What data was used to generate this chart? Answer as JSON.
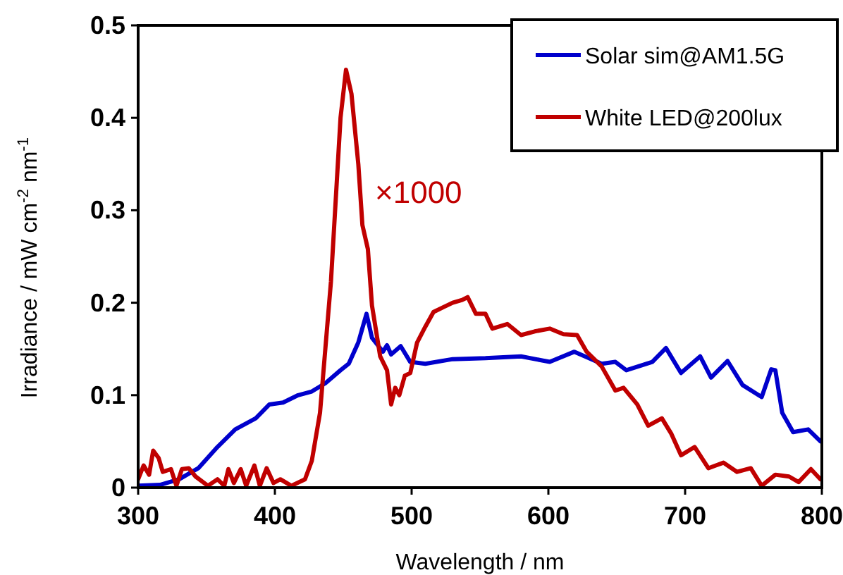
{
  "chart_data": {
    "type": "line",
    "xlabel": "Wavelength / nm",
    "ylabel": "Irradiance / mW cm$^{-2}$ nm$^{-1}$",
    "xlim": [
      300,
      800
    ],
    "xticks": [
      300,
      400,
      500,
      600,
      700,
      800
    ],
    "ylim": [
      0,
      0.5
    ],
    "yticks": [
      0,
      0.1,
      0.2,
      0.3,
      0.4,
      0.5
    ],
    "grid": false,
    "legend": "top right",
    "marker": "none",
    "line_style": "solid",
    "annotations": [
      "×1000"
    ],
    "series": [
      {
        "name": "Solar sim@AM1.5G",
        "color": "#0000cc",
        "x": [
          300,
          316,
          330,
          344,
          358,
          371,
          386,
          396,
          406,
          417,
          427,
          437,
          448,
          454,
          461,
          467,
          471,
          479,
          482,
          485,
          492,
          499,
          510,
          530,
          554,
          580,
          601,
          619,
          639,
          649,
          657,
          676,
          686,
          697,
          711,
          719,
          731,
          742,
          756,
          763,
          766,
          771,
          779,
          790,
          799
        ],
        "values": [
          0.002,
          0.003,
          0.009,
          0.021,
          0.044,
          0.063,
          0.075,
          0.09,
          0.092,
          0.1,
          0.104,
          0.113,
          0.127,
          0.134,
          0.157,
          0.188,
          0.162,
          0.147,
          0.154,
          0.144,
          0.153,
          0.136,
          0.134,
          0.139,
          0.14,
          0.142,
          0.136,
          0.147,
          0.134,
          0.136,
          0.127,
          0.136,
          0.151,
          0.124,
          0.142,
          0.119,
          0.137,
          0.111,
          0.098,
          0.128,
          0.127,
          0.081,
          0.06,
          0.063,
          0.05
        ]
      },
      {
        "name": "White LED@200lux",
        "color": "#c00000",
        "x": [
          300,
          304,
          308,
          311,
          315,
          318,
          324,
          328,
          332,
          337,
          342,
          351,
          358,
          363,
          366,
          370,
          375,
          379,
          385,
          389,
          394,
          399,
          404,
          412,
          422,
          427,
          433,
          441,
          448,
          452,
          456,
          461,
          464,
          468,
          471,
          477,
          482,
          485,
          488,
          491,
          495,
          499,
          504,
          510,
          516,
          523,
          530,
          537,
          541,
          547,
          554,
          559,
          570,
          580,
          590,
          601,
          611,
          621,
          628,
          639,
          649,
          655,
          665,
          673,
          683,
          690,
          697,
          707,
          717,
          728,
          738,
          748,
          756,
          766,
          776,
          783,
          792,
          799
        ],
        "values": [
          0.009,
          0.024,
          0.014,
          0.04,
          0.032,
          0.017,
          0.02,
          0.002,
          0.02,
          0.021,
          0.012,
          0.002,
          0.009,
          0.002,
          0.02,
          0.005,
          0.02,
          0.002,
          0.024,
          0.002,
          0.021,
          0.005,
          0.009,
          0.002,
          0.009,
          0.029,
          0.081,
          0.223,
          0.4,
          0.452,
          0.426,
          0.35,
          0.284,
          0.258,
          0.197,
          0.142,
          0.127,
          0.09,
          0.108,
          0.1,
          0.121,
          0.124,
          0.157,
          0.174,
          0.19,
          0.195,
          0.2,
          0.203,
          0.206,
          0.188,
          0.188,
          0.172,
          0.177,
          0.165,
          0.169,
          0.172,
          0.166,
          0.165,
          0.147,
          0.131,
          0.105,
          0.108,
          0.09,
          0.067,
          0.075,
          0.058,
          0.035,
          0.044,
          0.021,
          0.027,
          0.017,
          0.021,
          0.002,
          0.014,
          0.012,
          0.006,
          0.02,
          0.009
        ]
      }
    ]
  }
}
